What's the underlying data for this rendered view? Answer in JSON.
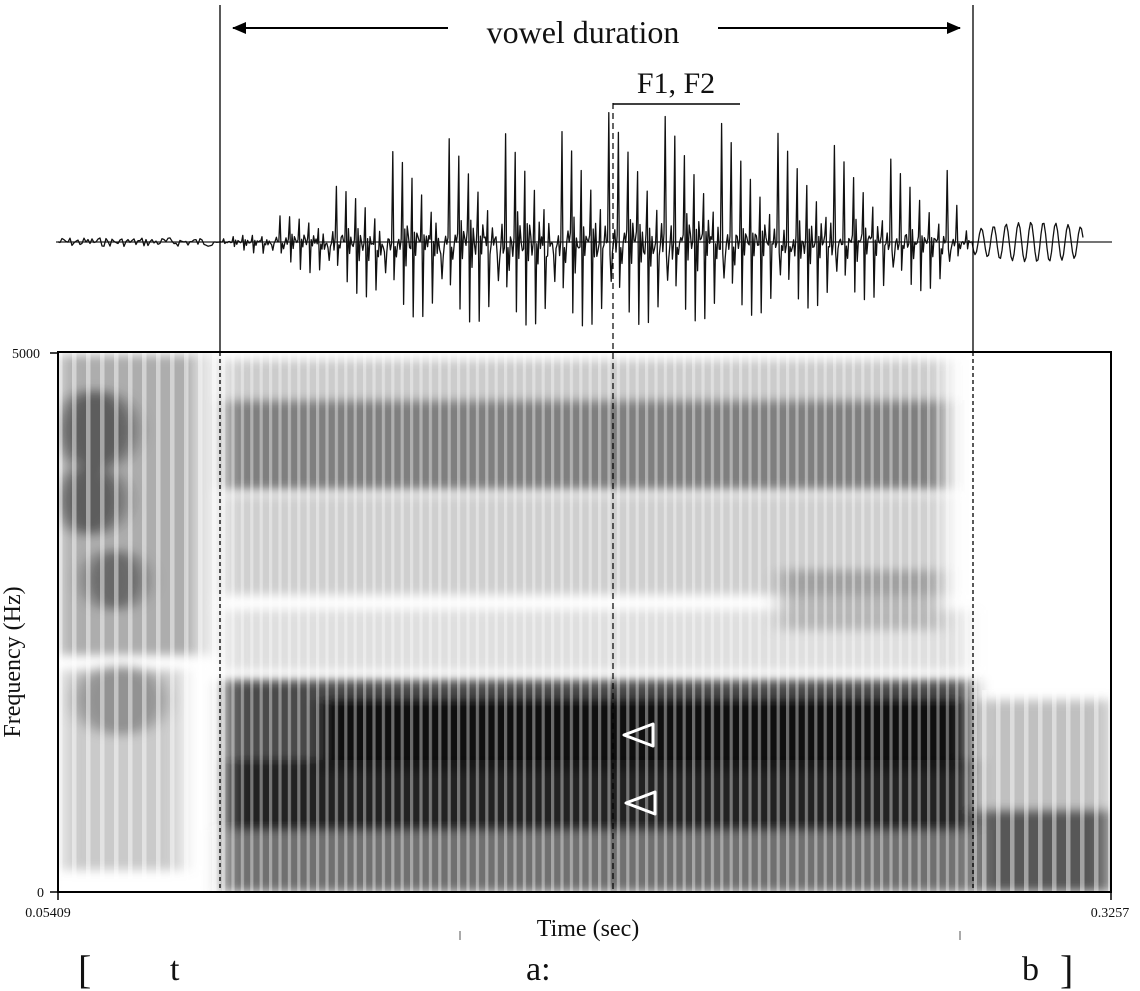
{
  "annotations": {
    "vowel_duration": "vowel duration",
    "formant_marker": "F1, F2"
  },
  "axes": {
    "y_label": "Frequency (Hz)",
    "y_max": "5000",
    "y_min": "0",
    "x_label": "Time (sec)",
    "x_start": "0.05409",
    "x_end": "0.3257"
  },
  "transcription": {
    "open_bracket": "[",
    "seg_t": "t",
    "seg_a": "a:",
    "seg_b": "b",
    "close_bracket": "]"
  },
  "colors": {
    "ink": "#111111",
    "spectrogram_dark": "#0d0d0d",
    "spectrogram_light": "#ffffff"
  }
}
